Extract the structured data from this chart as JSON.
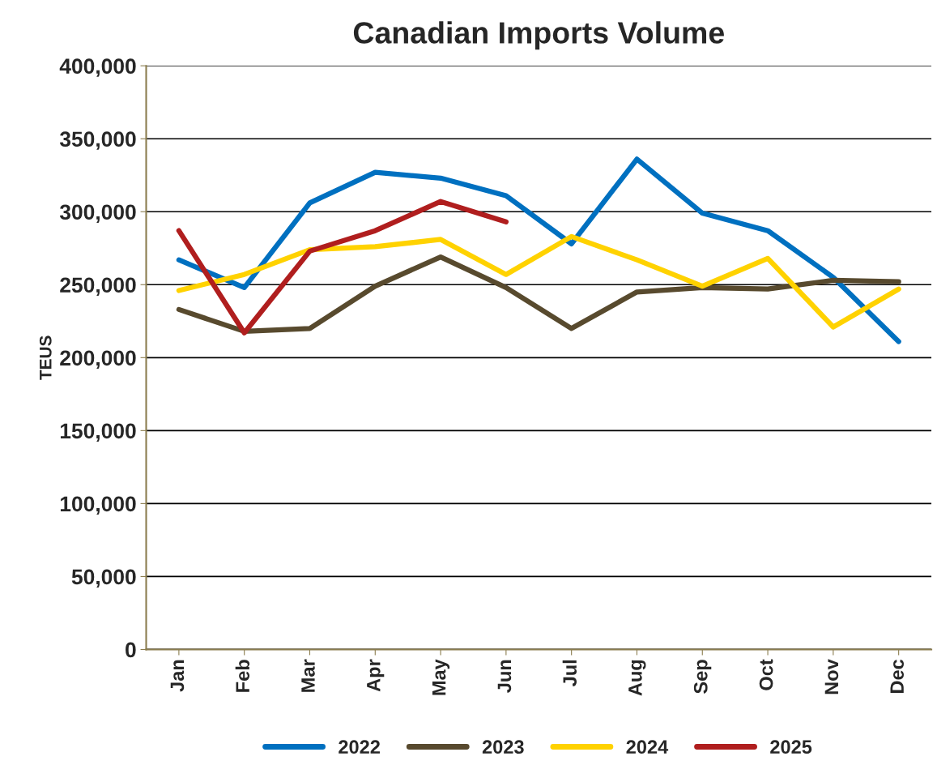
{
  "chart_data": {
    "type": "line",
    "title": "Canadian Imports Volume",
    "ylabel": "TEUS",
    "categories": [
      "Jan",
      "Feb",
      "Mar",
      "Apr",
      "May",
      "Jun",
      "Jul",
      "Aug",
      "Sep",
      "Oct",
      "Nov",
      "Dec"
    ],
    "series": [
      {
        "name": "2022",
        "color": "#0070c0",
        "values": [
          267000,
          248000,
          306000,
          327000,
          323000,
          311000,
          278000,
          336000,
          299000,
          287000,
          255000,
          211000
        ]
      },
      {
        "name": "2023",
        "color": "#584a2e",
        "values": [
          233000,
          218000,
          220000,
          249000,
          269000,
          248000,
          220000,
          245000,
          248000,
          247000,
          253000,
          252000
        ]
      },
      {
        "name": "2024",
        "color": "#ffd200",
        "values": [
          246000,
          257000,
          274000,
          276000,
          281000,
          257000,
          283000,
          267000,
          249000,
          268000,
          221000,
          247000
        ]
      },
      {
        "name": "2025",
        "color": "#b01e1e",
        "values": [
          287000,
          217000,
          273000,
          287000,
          307000,
          293000,
          null,
          null,
          null,
          null,
          null,
          null
        ]
      }
    ],
    "ylim": [
      0,
      400000
    ],
    "yticks": [
      {
        "value": 0,
        "label": "0"
      },
      {
        "value": 50000,
        "label": "50,000"
      },
      {
        "value": 100000,
        "label": "100,000"
      },
      {
        "value": 150000,
        "label": "150,000"
      },
      {
        "value": 200000,
        "label": "200,000"
      },
      {
        "value": 250000,
        "label": "250,000"
      },
      {
        "value": 300000,
        "label": "300,000"
      },
      {
        "value": 350000,
        "label": "350,000"
      },
      {
        "value": 400000,
        "label": "400,000"
      }
    ],
    "grid": "y",
    "legend": "bottom",
    "marker": "none",
    "line_style": "solid"
  }
}
